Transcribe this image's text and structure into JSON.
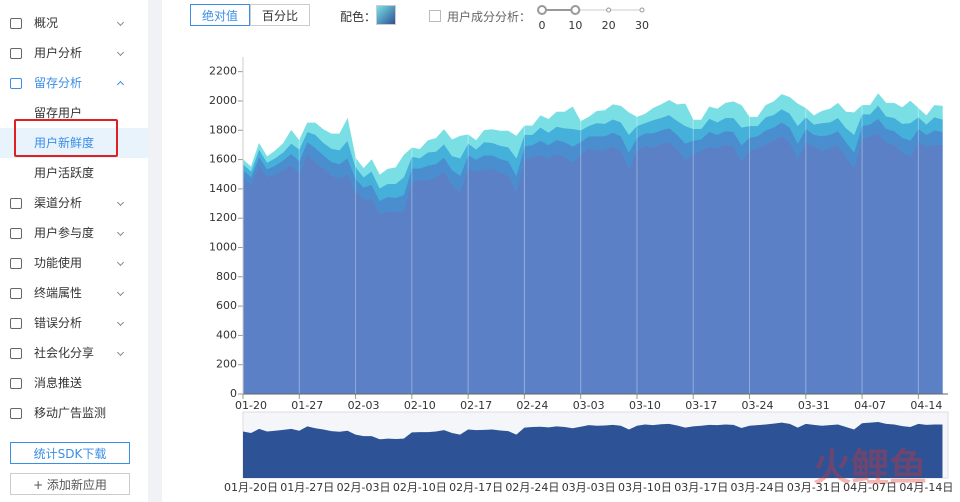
{
  "sidebar": {
    "items": [
      {
        "label": "概况",
        "kind": "group"
      },
      {
        "label": "用户分析",
        "kind": "group"
      },
      {
        "label": "留存分析",
        "kind": "open"
      },
      {
        "label": "留存用户",
        "kind": "sub"
      },
      {
        "label": "用户新鲜度",
        "kind": "selected"
      },
      {
        "label": "用户活跃度",
        "kind": "sub"
      },
      {
        "label": "渠道分析",
        "kind": "group"
      },
      {
        "label": "用户参与度",
        "kind": "group"
      },
      {
        "label": "功能使用",
        "kind": "group"
      },
      {
        "label": "终端属性",
        "kind": "group"
      },
      {
        "label": "错误分析",
        "kind": "group"
      },
      {
        "label": "社会化分享",
        "kind": "group"
      },
      {
        "label": "消息推送",
        "kind": "leaf"
      },
      {
        "label": "移动广告监测",
        "kind": "leaf"
      }
    ],
    "sdk_button": "统计SDK下载",
    "add_button": "+ 添加新应用"
  },
  "toolbar": {
    "tabs": [
      "绝对值",
      "百分比"
    ],
    "color_label": "配色：",
    "component_label": "用户成分分析：",
    "slider_ticks": [
      0,
      10,
      20,
      30
    ]
  },
  "watermark": "火鲤鱼",
  "chart_data": {
    "type": "area",
    "stacked": true,
    "categories": [
      "01-20",
      null,
      null,
      null,
      null,
      null,
      null,
      "01-27",
      null,
      null,
      null,
      null,
      null,
      null,
      "02-03",
      null,
      null,
      null,
      null,
      null,
      null,
      "02-10",
      null,
      null,
      null,
      null,
      null,
      null,
      "02-17",
      null,
      null,
      null,
      null,
      null,
      null,
      "02-24",
      null,
      null,
      null,
      null,
      null,
      null,
      "03-03",
      null,
      null,
      null,
      null,
      null,
      null,
      "03-10",
      null,
      null,
      null,
      null,
      null,
      null,
      "03-17",
      null,
      null,
      null,
      null,
      null,
      null,
      "03-24",
      null,
      null,
      null,
      null,
      null,
      null,
      "03-31",
      null,
      null,
      null,
      null,
      null,
      null,
      "04-07",
      null,
      null,
      null,
      null,
      null,
      null,
      "04-14",
      null,
      null,
      null
    ],
    "navigator_labels": [
      "01月-20日",
      "01月-27日",
      "02月-03日",
      "02月-10日",
      "02月-17日",
      "02月-24日",
      "03月-03日",
      "03月-10日",
      "03月-17日",
      "03月-24日",
      "03月-31日",
      "04月-07日",
      "04月-14日"
    ],
    "ylim": [
      0,
      2300
    ],
    "yticks": [
      0,
      200,
      400,
      600,
      800,
      1000,
      1200,
      1400,
      1600,
      1800,
      2000,
      2200
    ],
    "grid": true,
    "series": [
      {
        "color": "#5b80c6",
        "values": [
          1480,
          1430,
          1560,
          1480,
          1500,
          1530,
          1560,
          1500,
          1640,
          1580,
          1540,
          1490,
          1470,
          1500,
          1380,
          1330,
          1330,
          1230,
          1250,
          1240,
          1250,
          1450,
          1460,
          1460,
          1480,
          1520,
          1430,
          1380,
          1540,
          1520,
          1530,
          1540,
          1510,
          1490,
          1380,
          1600,
          1620,
          1630,
          1610,
          1640,
          1620,
          1580,
          1630,
          1680,
          1660,
          1670,
          1690,
          1660,
          1540,
          1660,
          1700,
          1680,
          1710,
          1720,
          1670,
          1600,
          1640,
          1660,
          1690,
          1680,
          1700,
          1690,
          1590,
          1660,
          1680,
          1700,
          1730,
          1760,
          1720,
          1600,
          1720,
          1690,
          1660,
          1680,
          1700,
          1620,
          1540,
          1740,
          1760,
          1780,
          1720,
          1700,
          1650,
          1620,
          1720,
          1690,
          1700,
          1700
        ]
      },
      {
        "color": "#4a8ed0",
        "values": [
          50,
          50,
          60,
          55,
          60,
          65,
          80,
          90,
          80,
          100,
          90,
          95,
          100,
          110,
          90,
          80,
          100,
          90,
          95,
          100,
          110,
          90,
          80,
          100,
          90,
          95,
          100,
          110,
          90,
          80,
          100,
          90,
          95,
          100,
          110,
          90,
          80,
          100,
          90,
          95,
          100,
          110,
          90,
          80,
          100,
          90,
          95,
          100,
          110,
          90,
          80,
          100,
          90,
          95,
          100,
          110,
          90,
          80,
          100,
          90,
          95,
          100,
          110,
          90,
          80,
          100,
          90,
          95,
          100,
          110,
          90,
          80,
          100,
          90,
          95,
          100,
          110,
          90,
          80,
          100,
          90,
          95,
          100,
          110,
          90,
          80,
          100,
          90
        ]
      },
      {
        "color": "#45b0da",
        "values": [
          40,
          40,
          50,
          45,
          50,
          55,
          70,
          80,
          70,
          90,
          85,
          90,
          95,
          120,
          80,
          70,
          90,
          85,
          90,
          95,
          120,
          80,
          70,
          90,
          85,
          90,
          95,
          120,
          80,
          70,
          90,
          85,
          90,
          95,
          120,
          80,
          70,
          90,
          85,
          90,
          95,
          120,
          80,
          70,
          90,
          85,
          90,
          95,
          120,
          80,
          70,
          90,
          85,
          90,
          95,
          120,
          80,
          70,
          90,
          85,
          90,
          95,
          120,
          80,
          70,
          90,
          85,
          90,
          95,
          120,
          80,
          70,
          90,
          85,
          90,
          95,
          120,
          80,
          70,
          90,
          85,
          90,
          95,
          120,
          80,
          70,
          90,
          85
        ]
      },
      {
        "color": "#7adfe5",
        "values": [
          30,
          30,
          40,
          40,
          50,
          60,
          90,
          60,
          60,
          80,
          90,
          100,
          110,
          150,
          60,
          60,
          80,
          90,
          100,
          110,
          150,
          60,
          60,
          80,
          90,
          100,
          110,
          150,
          60,
          60,
          80,
          90,
          100,
          110,
          150,
          60,
          60,
          80,
          90,
          100,
          110,
          150,
          60,
          60,
          80,
          90,
          100,
          110,
          150,
          60,
          60,
          80,
          90,
          100,
          110,
          150,
          60,
          60,
          80,
          90,
          100,
          110,
          150,
          60,
          60,
          80,
          90,
          100,
          110,
          150,
          60,
          60,
          80,
          90,
          100,
          110,
          150,
          60,
          60,
          80,
          90,
          100,
          110,
          150,
          60,
          60,
          80,
          90
        ]
      }
    ],
    "navigator_color": "#2d5296"
  }
}
